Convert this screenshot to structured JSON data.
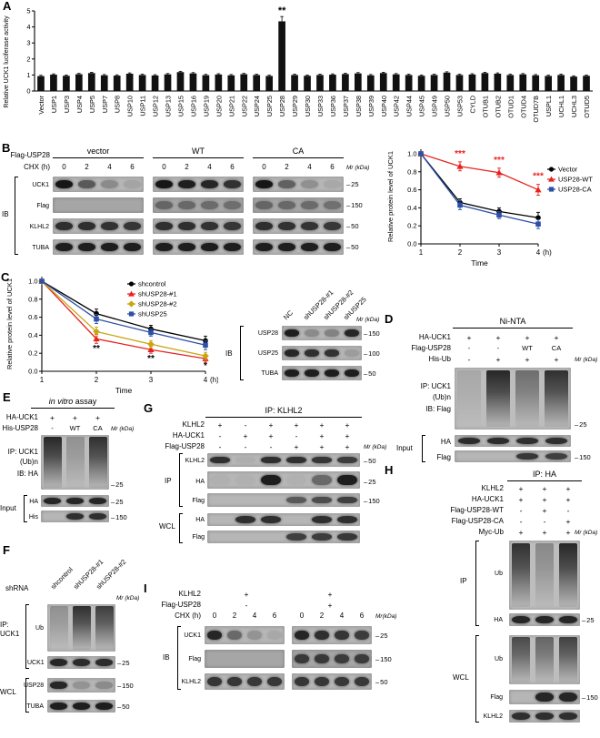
{
  "panels": {
    "A": {
      "label": "A",
      "chart_data": {
        "type": "bar",
        "ylabel": "Relative UCK1 luciferase activity",
        "ylim": [
          0,
          5
        ],
        "yticks": [
          "0",
          "1",
          "2",
          "3",
          "4",
          "5"
        ],
        "bar_color": "#111111",
        "categories": [
          "Vector",
          "USP1",
          "USP3",
          "USP4",
          "USP5",
          "USP7",
          "USP8",
          "USP10",
          "USP11",
          "USP12",
          "USP13",
          "USP15",
          "USP16",
          "USP19",
          "USP20",
          "USP21",
          "USP22",
          "USP24",
          "USP25",
          "USP28",
          "USP29",
          "USP30",
          "USP33",
          "USP36",
          "USP37",
          "USP38",
          "USP39",
          "USP40",
          "USP42",
          "USP44",
          "USP45",
          "USP49",
          "USP50",
          "USP53",
          "CYLD",
          "OTUB1",
          "OTUB2",
          "OTUD1",
          "OTUD4",
          "OTUD7B",
          "USPL1",
          "UCHL1",
          "UCHL3",
          "OTUD5"
        ],
        "values": [
          0.93,
          1.02,
          0.95,
          1.05,
          1.12,
          0.98,
          0.96,
          1.08,
          1.0,
          0.97,
          1.04,
          1.18,
          1.1,
          0.99,
          1.03,
          0.98,
          1.05,
          1.0,
          0.94,
          4.35,
          1.0,
          0.95,
          1.0,
          1.02,
          1.06,
          1.1,
          0.98,
          1.12,
          1.04,
          1.0,
          0.95,
          1.0,
          1.15,
          1.0,
          1.03,
          1.12,
          1.08,
          1.0,
          1.04,
          0.98,
          0.94,
          1.0,
          0.9,
          0.95
        ],
        "errors": [
          0.05,
          0.05,
          0.05,
          0.05,
          0.05,
          0.05,
          0.05,
          0.05,
          0.05,
          0.05,
          0.05,
          0.05,
          0.05,
          0.05,
          0.05,
          0.05,
          0.05,
          0.05,
          0.05,
          0.3,
          0.05,
          0.05,
          0.05,
          0.05,
          0.05,
          0.05,
          0.05,
          0.05,
          0.05,
          0.05,
          0.05,
          0.05,
          0.05,
          0.05,
          0.05,
          0.05,
          0.05,
          0.05,
          0.05,
          0.05,
          0.05,
          0.05,
          0.05,
          0.05
        ],
        "significance": {
          "index": 19,
          "text": "**"
        }
      }
    },
    "B": {
      "label": "B",
      "blot": {
        "construct_label": "Flag-USP28",
        "groups": [
          "vector",
          "WT",
          "CA"
        ],
        "chx_label": "CHX (h)",
        "times": [
          "0",
          "2",
          "4",
          "6"
        ],
        "ib_label": "IB",
        "mr_label": "Mr (kDa)",
        "rows": [
          {
            "label": "UCK1",
            "marker": "25",
            "groups": [
              [
                0.95,
                0.55,
                0.25,
                0.1
              ],
              [
                0.95,
                0.9,
                0.85,
                0.78
              ],
              [
                0.95,
                0.5,
                0.22,
                0.08
              ]
            ]
          },
          {
            "label": "Flag",
            "marker": "150",
            "groups": [
              [
                0,
                0,
                0,
                0
              ],
              [
                0.42,
                0.4,
                0.38,
                0.36
              ],
              [
                0.42,
                0.4,
                0.38,
                0.35
              ]
            ]
          },
          {
            "label": "KLHL2",
            "marker": "50",
            "groups": [
              [
                0.8,
                0.8,
                0.78,
                0.76
              ],
              [
                0.8,
                0.8,
                0.78,
                0.76
              ],
              [
                0.8,
                0.78,
                0.77,
                0.75
              ]
            ]
          },
          {
            "label": "TUBA",
            "marker": "50",
            "groups": [
              [
                0.9,
                0.9,
                0.9,
                0.9
              ],
              [
                0.9,
                0.9,
                0.9,
                0.9
              ],
              [
                0.9,
                0.9,
                0.9,
                0.9
              ]
            ]
          }
        ]
      },
      "chart_data": {
        "type": "line",
        "ylabel": "Relative protein level of UCK1",
        "xlabel": "Time",
        "x_suffix": "(h)",
        "x": [
          1,
          2,
          3,
          4
        ],
        "xticks": [
          "1",
          "2",
          "3",
          "4"
        ],
        "ylim": [
          0,
          1.05
        ],
        "yticks": [
          "0.0",
          "0.2",
          "0.4",
          "0.6",
          "0.8",
          "1.0"
        ],
        "legend_position": "right",
        "series": [
          {
            "name": "Vector",
            "color": "#000000",
            "marker": "circle",
            "values": [
              1.0,
              0.46,
              0.36,
              0.29
            ],
            "errors": [
              0.02,
              0.04,
              0.04,
              0.06
            ]
          },
          {
            "name": "USP28-WT",
            "color": "#e8231e",
            "marker": "triangle",
            "values": [
              1.0,
              0.86,
              0.79,
              0.6
            ],
            "errors": [
              0.02,
              0.05,
              0.05,
              0.06
            ]
          },
          {
            "name": "USP28-CA",
            "color": "#2d50a7",
            "marker": "square",
            "values": [
              1.0,
              0.43,
              0.32,
              0.22
            ],
            "errors": [
              0.02,
              0.05,
              0.04,
              0.05
            ]
          }
        ],
        "annotations": [
          {
            "x": 2,
            "y": 0.97,
            "text": "***",
            "color": "#e8231e"
          },
          {
            "x": 3,
            "y": 0.9,
            "text": "***",
            "color": "#e8231e"
          },
          {
            "x": 4,
            "y": 0.72,
            "text": "***",
            "color": "#e8231e"
          }
        ]
      }
    },
    "C": {
      "label": "C",
      "chart_data": {
        "type": "line",
        "ylabel": "Relative protein level of UCK1",
        "xlabel": "Time",
        "x_suffix": "(h)",
        "x": [
          1,
          2,
          3,
          4
        ],
        "xticks": [
          "1",
          "2",
          "3",
          "4"
        ],
        "ylim": [
          0,
          1.05
        ],
        "yticks": [
          "0.0",
          "0.2",
          "0.4",
          "0.6",
          "0.8",
          "1.0"
        ],
        "legend_position": "inside",
        "series": [
          {
            "name": "shcontrol",
            "color": "#000000",
            "marker": "circle",
            "values": [
              1.0,
              0.64,
              0.47,
              0.34
            ],
            "errors": [
              0.02,
              0.05,
              0.04,
              0.05
            ]
          },
          {
            "name": "shUSP28-#1",
            "color": "#e8231e",
            "marker": "triangle",
            "values": [
              1.0,
              0.36,
              0.24,
              0.14
            ],
            "errors": [
              0.02,
              0.05,
              0.04,
              0.04
            ]
          },
          {
            "name": "shUSP28-#2",
            "color": "#c8a512",
            "marker": "diamond",
            "values": [
              1.0,
              0.44,
              0.3,
              0.17
            ],
            "errors": [
              0.02,
              0.05,
              0.04,
              0.04
            ]
          },
          {
            "name": "shUSP25",
            "color": "#2d50a7",
            "marker": "square",
            "values": [
              1.0,
              0.58,
              0.43,
              0.29
            ],
            "errors": [
              0.02,
              0.05,
              0.04,
              0.05
            ]
          }
        ],
        "annotations": [
          {
            "x": 2,
            "y": 0.22,
            "text": "**",
            "color": "#000000"
          },
          {
            "x": 3,
            "y": 0.11,
            "text": "**",
            "color": "#000000"
          },
          {
            "x": 4,
            "y": 0.03,
            "text": "*",
            "color": "#000000"
          }
        ]
      },
      "blot": {
        "columns": [
          "NC",
          "shUSP28-#1",
          "shUSP28-#2",
          "shUSP25"
        ],
        "ib_label": "IB",
        "mr_label": "Mr (kDa)",
        "rows": [
          {
            "label": "USP28",
            "marker": "150",
            "lanes": [
              0.9,
              0.25,
              0.3,
              0.85
            ]
          },
          {
            "label": "USP25",
            "marker": "100",
            "lanes": [
              0.85,
              0.8,
              0.78,
              0.15
            ]
          },
          {
            "label": "TUBA",
            "marker": "50",
            "lanes": [
              0.9,
              0.9,
              0.9,
              0.9
            ]
          }
        ]
      }
    },
    "D": {
      "label": "D",
      "title": "Ni-NTA",
      "conditions": [
        {
          "label": "HA-UCK1",
          "values": [
            "+",
            "+",
            "+",
            "+"
          ]
        },
        {
          "label": "Flag-USP28",
          "values": [
            "-",
            "-",
            "WT",
            "CA"
          ]
        },
        {
          "label": "His-Ub",
          "values": [
            "-",
            "+",
            "+",
            "+"
          ]
        }
      ],
      "mr_label": "Mr (kDa)",
      "ip_lines": [
        "IP: UCK1",
        "(Ub)n",
        "IB: Flag"
      ],
      "ip_smear": [
        0.12,
        0.85,
        0.45,
        0.8
      ],
      "ip_marker": "25",
      "input_label": "Input",
      "input_rows": [
        {
          "label": "HA",
          "lanes": [
            0.82,
            0.82,
            0.8,
            0.8
          ]
        },
        {
          "label": "Flag",
          "marker": "150",
          "lanes": [
            0,
            0,
            0.75,
            0.7
          ]
        }
      ]
    },
    "E": {
      "label": "E",
      "title_italic": "in vitro",
      "title_rest": " assay",
      "conditions": [
        {
          "label": "HA-UCK1",
          "values": [
            "+",
            "+",
            "+"
          ]
        },
        {
          "label": "His-USP28",
          "values": [
            "-",
            "WT",
            "CA"
          ]
        }
      ],
      "mr_label": "Mr (kDa)",
      "ip_lines": [
        "IP: UCK1",
        "(Ub)n",
        "IB: HA"
      ],
      "ip_smear": [
        0.85,
        0.25,
        0.8
      ],
      "ip_marker": "25",
      "input_label": "Input",
      "input_rows": [
        {
          "label": "HA",
          "marker": "25",
          "lanes": [
            0.85,
            0.85,
            0.85
          ]
        },
        {
          "label": "His",
          "marker": "150",
          "lanes": [
            0,
            0.8,
            0.8
          ]
        }
      ]
    },
    "F": {
      "label": "F",
      "shrna_label": "shRNA",
      "columns": [
        "shcontrol",
        "shUSP28-#1",
        "shUSP28-#2"
      ],
      "mr_label": "Mr (kDa)",
      "ip_label_lines": [
        "IP:",
        "UCK1"
      ],
      "ip_rows": [
        {
          "label": "Ub",
          "lanes": [
            0.25,
            0.8,
            0.72
          ]
        },
        {
          "label": "UCK1",
          "marker": "25",
          "lanes": [
            0.85,
            0.82,
            0.82
          ]
        }
      ],
      "wcl_label": "WCL",
      "wcl_rows": [
        {
          "label": "USP28",
          "marker": "150",
          "lanes": [
            0.85,
            0.2,
            0.25
          ]
        },
        {
          "label": "TUBA",
          "marker": "50",
          "lanes": [
            0.9,
            0.9,
            0.9
          ]
        }
      ]
    },
    "G": {
      "label": "G",
      "title": "IP: KLHL2",
      "conditions": [
        {
          "label": "KLHL2",
          "values": [
            "+",
            "-",
            "+",
            "+",
            "+",
            "+"
          ]
        },
        {
          "label": "HA-UCK1",
          "values": [
            "-",
            "+",
            "+",
            "-",
            "+",
            "+"
          ]
        },
        {
          "label": "Flag-USP28",
          "values": [
            "-",
            "-",
            "-",
            "+",
            "+",
            "+"
          ]
        }
      ],
      "mr_label": "Mr (kDa)",
      "ip_label": "IP",
      "ip_rows": [
        {
          "label": "KLHL2",
          "marker": "50",
          "lanes": [
            0.8,
            0.04,
            0.8,
            0.8,
            0.76,
            0.72
          ]
        },
        {
          "label": "HA",
          "marker": "25",
          "lanes": [
            0.03,
            0.03,
            0.9,
            0.03,
            0.45,
            0.9
          ]
        },
        {
          "label": "Flag",
          "marker": "150",
          "lanes": [
            0,
            0,
            0,
            0.55,
            0.62,
            0.7
          ]
        }
      ],
      "wcl_label": "WCL",
      "wcl_rows": [
        {
          "label": "HA",
          "lanes": [
            0,
            0.8,
            0.8,
            0,
            0.8,
            0.8
          ]
        },
        {
          "label": "Flag",
          "lanes": [
            0,
            0,
            0,
            0.7,
            0.72,
            0.75
          ]
        }
      ]
    },
    "H": {
      "label": "H",
      "title": "IP: HA",
      "conditions": [
        {
          "label": "KLHL2",
          "values": [
            "+",
            "+",
            "+"
          ]
        },
        {
          "label": "HA-UCK1",
          "values": [
            "+",
            "+",
            "+"
          ]
        },
        {
          "label": "Flag-USP28-WT",
          "values": [
            "-",
            "+",
            "-"
          ]
        },
        {
          "label": "Flag-USP28-CA",
          "values": [
            "-",
            "-",
            "+"
          ]
        },
        {
          "label": "Myc-Ub",
          "values": [
            "+",
            "+",
            "+"
          ]
        }
      ],
      "mr_label": "Mr (kDa)",
      "ip_label": "IP",
      "ip_rows": [
        {
          "label": "Ub",
          "lanes": [
            0.8,
            0.3,
            0.85
          ]
        },
        {
          "label": "HA",
          "marker": "25",
          "lanes": [
            0.85,
            0.85,
            0.85
          ]
        }
      ],
      "wcl_label": "WCL",
      "wcl_rows": [
        {
          "label": "Ub",
          "lanes": [
            0.65,
            0.5,
            0.7
          ]
        },
        {
          "label": "Flag",
          "marker": "150",
          "lanes": [
            0,
            0.85,
            0.85
          ]
        },
        {
          "label": "KLHL2",
          "lanes": [
            0.8,
            0.8,
            0.8
          ]
        }
      ]
    },
    "I": {
      "label": "I",
      "conditions": [
        {
          "label": "KLHL2",
          "values": [
            "+",
            "+"
          ]
        },
        {
          "label": "Flag-USP28",
          "values": [
            "-",
            "+"
          ]
        }
      ],
      "chx_label": "CHX (h)",
      "times": [
        "0",
        "2",
        "4",
        "6"
      ],
      "mr_label": "Mr(kDa)",
      "ib_label": "IB",
      "rows": [
        {
          "label": "UCK1",
          "marker": "25",
          "groups": [
            [
              0.85,
              0.45,
              0.2,
              0.08
            ],
            [
              0.85,
              0.8,
              0.76,
              0.72
            ]
          ]
        },
        {
          "label": "Flag",
          "marker": "150",
          "groups": [
            [
              0,
              0,
              0,
              0
            ],
            [
              0.72,
              0.72,
              0.7,
              0.7
            ]
          ]
        },
        {
          "label": "KLHL2",
          "marker": "50",
          "groups": [
            [
              0.76,
              0.76,
              0.75,
              0.75
            ],
            [
              0.76,
              0.76,
              0.75,
              0.75
            ]
          ]
        }
      ]
    }
  }
}
